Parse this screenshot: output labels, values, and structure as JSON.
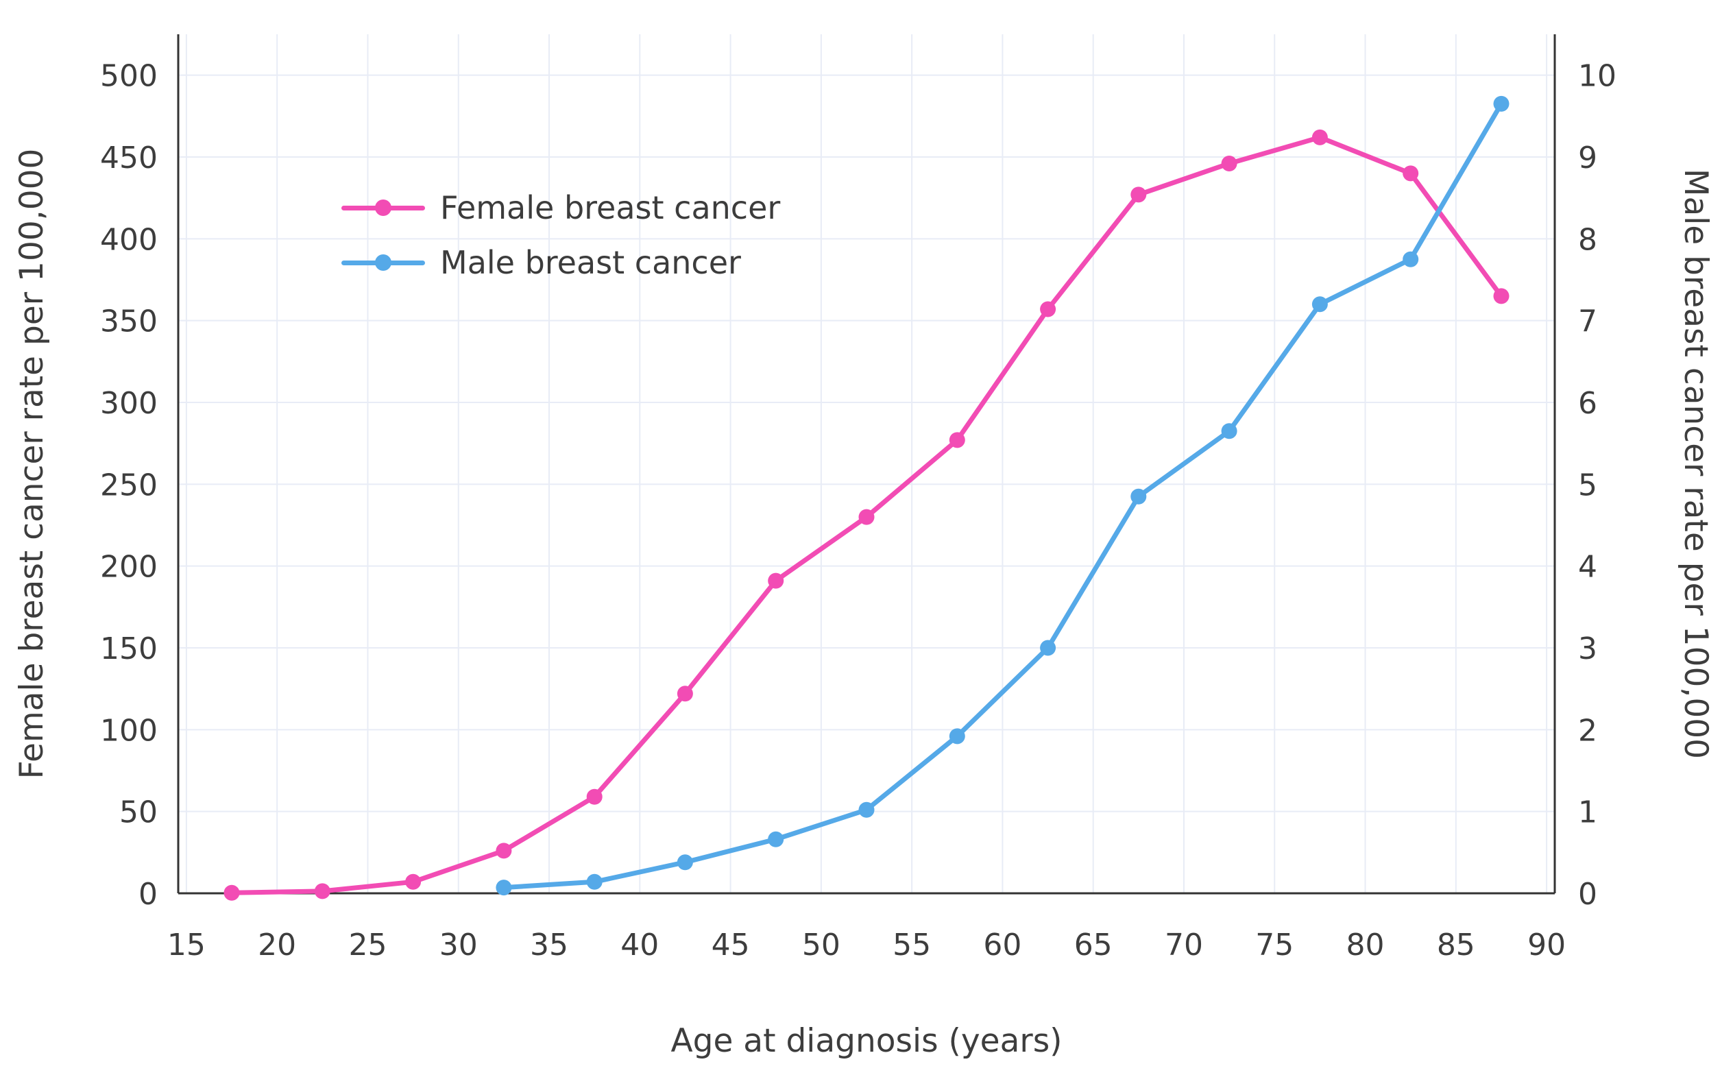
{
  "colors": {
    "female_series": "#F24CB4",
    "male_series": "#55A9E8",
    "grid": "#E8ECF6",
    "axis": "#333333",
    "text": "#3D3D3D"
  },
  "chart_data": {
    "type": "line",
    "title": "",
    "xlabel": "Age at diagnosis (years)",
    "grid": true,
    "legend_position": "top-left-inside",
    "x": [
      17.5,
      22.5,
      27.5,
      32.5,
      37.5,
      42.5,
      47.5,
      52.5,
      57.5,
      62.5,
      67.5,
      72.5,
      77.5,
      82.5,
      87.5
    ],
    "x_axis": {
      "min": 14.55,
      "max": 90.45,
      "ticks": [
        15,
        20,
        25,
        30,
        35,
        40,
        45,
        50,
        55,
        60,
        65,
        70,
        75,
        80,
        85,
        90
      ]
    },
    "left_axis": {
      "label": "Female breast cancer rate per 100,000",
      "min": 0,
      "max": 500,
      "ticks": [
        0,
        50,
        100,
        150,
        200,
        250,
        300,
        350,
        400,
        450,
        500
      ]
    },
    "right_axis": {
      "label": "Male breast cancer rate per 100,000",
      "min": 0,
      "max": 10,
      "ticks": [
        0,
        1,
        2,
        3,
        4,
        5,
        6,
        7,
        8,
        9,
        10
      ]
    },
    "series": [
      {
        "name": "Female breast cancer",
        "axis": "left",
        "color": "#F24CB4",
        "values": [
          0.3,
          1.3,
          7,
          26,
          59,
          122,
          191,
          230,
          277,
          357,
          427,
          446,
          462,
          440,
          365
        ]
      },
      {
        "name": "Male breast cancer",
        "axis": "right",
        "color": "#55A9E8",
        "values": [
          null,
          null,
          null,
          0.07,
          0.14,
          0.38,
          0.66,
          1.02,
          1.92,
          3.0,
          4.85,
          5.65,
          7.2,
          7.75,
          9.65
        ]
      }
    ]
  }
}
